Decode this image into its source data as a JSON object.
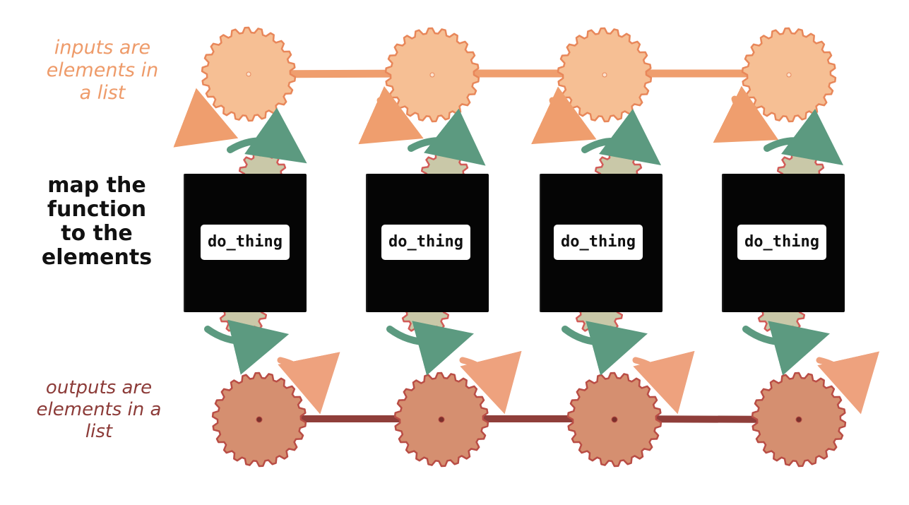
{
  "labels": {
    "inputs": [
      "inputs are",
      "elements in",
      "a list"
    ],
    "map": [
      "map the",
      "function",
      "to the",
      "elements"
    ],
    "outputs": [
      "outputs are",
      "elements in a",
      "list"
    ]
  },
  "function_boxes": [
    {
      "label": "do_thing"
    },
    {
      "label": "do_thing"
    },
    {
      "label": "do_thing"
    },
    {
      "label": "do_thing"
    }
  ],
  "colors": {
    "input_gear_fill": "#f6bf94",
    "input_gear_stroke": "#e8875a",
    "input_chain": "#ef9e6e",
    "output_gear_fill": "#d58f70",
    "output_gear_stroke": "#b94d45",
    "output_chain": "#8f3e3a",
    "inner_gear_fill": "#c9c8a8",
    "inner_gear_stroke": "#d25c58",
    "cycle_arrow": "#5c9a80",
    "flow_arrow": "#ef9e6e",
    "box": "#050505"
  }
}
